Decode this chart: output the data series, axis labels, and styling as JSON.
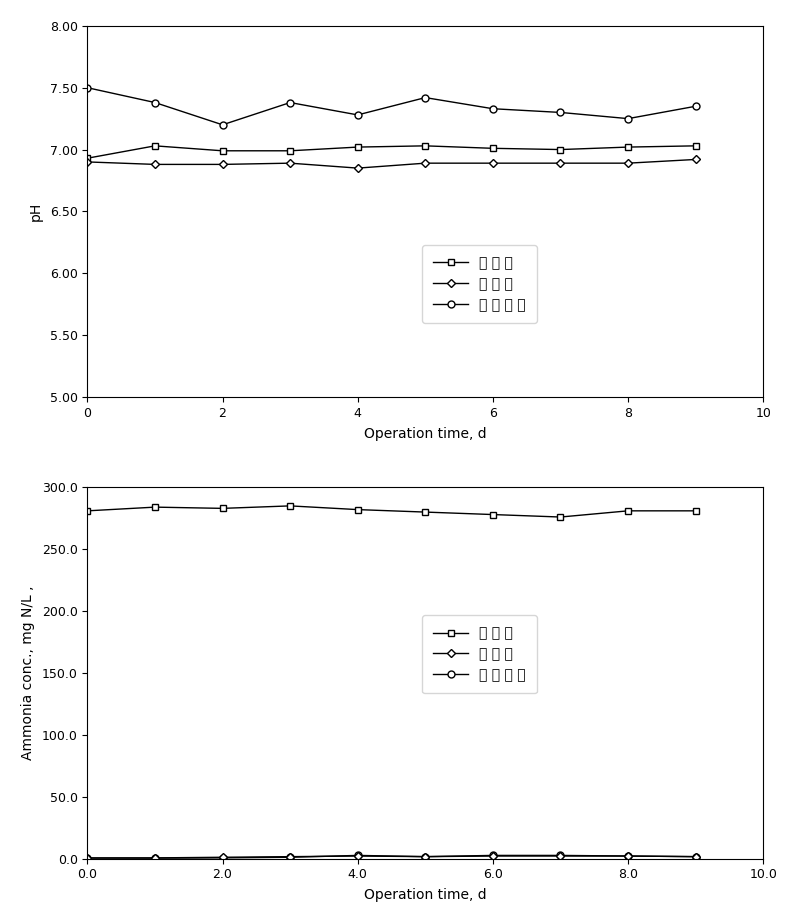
{
  "ph_plot": {
    "x_inflow": [
      0,
      1,
      2,
      3,
      4,
      5,
      6,
      7,
      8,
      9
    ],
    "y_inflow": [
      6.93,
      7.03,
      6.99,
      6.99,
      7.02,
      7.03,
      7.01,
      7.0,
      7.02,
      7.03
    ],
    "x_aero": [
      0,
      1,
      2,
      3,
      4,
      5,
      6,
      7,
      8,
      9
    ],
    "y_aero": [
      6.9,
      6.88,
      6.88,
      6.89,
      6.85,
      6.89,
      6.89,
      6.89,
      6.89,
      6.92
    ],
    "x_nitri": [
      0,
      1,
      2,
      3,
      4,
      5,
      6,
      7,
      8,
      9
    ],
    "y_nitri": [
      7.5,
      7.38,
      7.2,
      7.38,
      7.28,
      7.42,
      7.33,
      7.3,
      7.25,
      7.35
    ],
    "ylabel": "pH",
    "xlabel": "Operation time, d",
    "ylim": [
      5.0,
      8.0
    ],
    "yticks": [
      5.0,
      5.5,
      6.0,
      6.5,
      7.0,
      7.5,
      8.0
    ],
    "xlim": [
      0,
      10
    ],
    "xticks": [
      0,
      2,
      4,
      6,
      8,
      10
    ]
  },
  "nh_plot": {
    "x_inflow": [
      0,
      1,
      2,
      3,
      4,
      5,
      6,
      7,
      8,
      9
    ],
    "y_inflow": [
      281.0,
      284.0,
      283.0,
      285.0,
      282.0,
      280.0,
      278.0,
      276.0,
      281.0,
      281.0
    ],
    "x_aero": [
      0,
      1,
      2,
      3,
      4,
      5,
      6,
      7,
      8,
      9
    ],
    "y_aero": [
      0.5,
      0.5,
      1.0,
      1.5,
      2.0,
      1.5,
      2.0,
      2.0,
      2.0,
      1.5
    ],
    "x_nitri": [
      0,
      1,
      2,
      3,
      4,
      5,
      6,
      7,
      8,
      9
    ],
    "y_nitri": [
      0.3,
      0.3,
      0.5,
      1.0,
      2.5,
      1.5,
      2.5,
      2.5,
      2.0,
      1.5
    ],
    "ylabel": "Ammonia conc., mg N/L ,",
    "xlabel": "Operation time, d",
    "ylim": [
      0.0,
      300.0
    ],
    "yticks": [
      0.0,
      50.0,
      100.0,
      150.0,
      200.0,
      250.0,
      300.0
    ],
    "xlim": [
      0.0,
      10.0
    ],
    "xticks": [
      0.0,
      2.0,
      4.0,
      6.0,
      8.0,
      10.0
    ]
  },
  "line_color": "#000000",
  "marker_inflow": "s",
  "marker_aero": "D",
  "marker_nitri": "o",
  "marker_size": 5,
  "font_size": 10,
  "tick_font_size": 9,
  "label_font_size": 10
}
